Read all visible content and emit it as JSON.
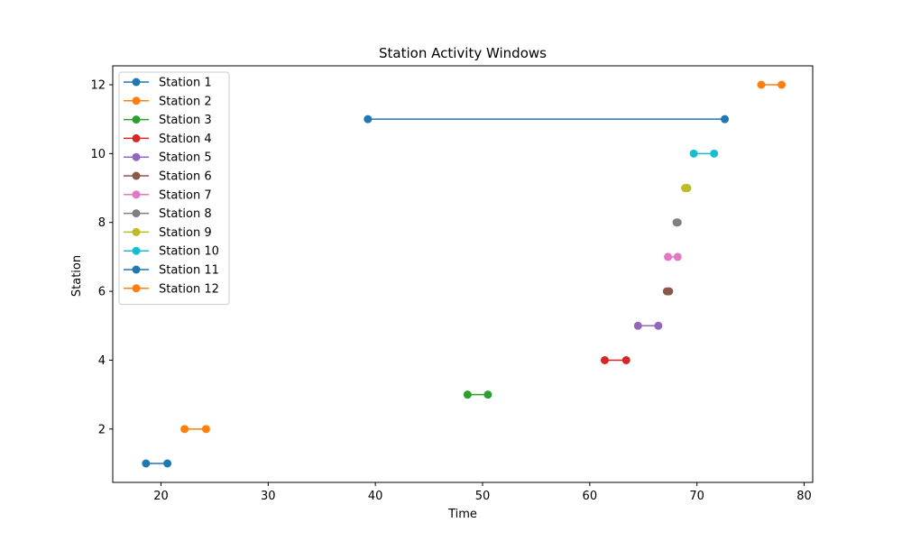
{
  "chart_data": {
    "type": "line",
    "title": "Station Activity Windows",
    "xlabel": "Time",
    "ylabel": "Station",
    "xlim": [
      15.5,
      80.8
    ],
    "ylim": [
      0.45,
      12.55
    ],
    "xticks": [
      20,
      30,
      40,
      50,
      60,
      70,
      80
    ],
    "yticks": [
      2,
      4,
      6,
      8,
      10,
      12
    ],
    "grid": false,
    "legend_position": "upper-left",
    "series": [
      {
        "name": "Station 1",
        "color": "#1f77b4",
        "x": [
          18.6,
          20.6
        ],
        "y": [
          1,
          1
        ]
      },
      {
        "name": "Station 2",
        "color": "#ff7f0e",
        "x": [
          22.2,
          24.2
        ],
        "y": [
          2,
          2
        ]
      },
      {
        "name": "Station 3",
        "color": "#2ca02c",
        "x": [
          48.6,
          50.5
        ],
        "y": [
          3,
          3
        ]
      },
      {
        "name": "Station 4",
        "color": "#d62728",
        "x": [
          61.4,
          63.4
        ],
        "y": [
          4,
          4
        ]
      },
      {
        "name": "Station 5",
        "color": "#9467bd",
        "x": [
          64.5,
          66.4
        ],
        "y": [
          5,
          5
        ]
      },
      {
        "name": "Station 6",
        "color": "#8c564b",
        "x": [
          67.2,
          67.4
        ],
        "y": [
          6,
          6
        ]
      },
      {
        "name": "Station 7",
        "color": "#e377c2",
        "x": [
          67.3,
          68.2
        ],
        "y": [
          7,
          7
        ]
      },
      {
        "name": "Station 8",
        "color": "#7f7f7f",
        "x": [
          68.1,
          68.2
        ],
        "y": [
          8,
          8
        ]
      },
      {
        "name": "Station 9",
        "color": "#bcbd22",
        "x": [
          68.9,
          69.1
        ],
        "y": [
          9,
          9
        ]
      },
      {
        "name": "Station 10",
        "color": "#17becf",
        "x": [
          69.7,
          71.6
        ],
        "y": [
          10,
          10
        ]
      },
      {
        "name": "Station 11",
        "color": "#1f77b4",
        "x": [
          39.3,
          72.6
        ],
        "y": [
          11,
          11
        ]
      },
      {
        "name": "Station 12",
        "color": "#ff7f0e",
        "x": [
          76.0,
          77.9
        ],
        "y": [
          12,
          12
        ]
      }
    ]
  }
}
